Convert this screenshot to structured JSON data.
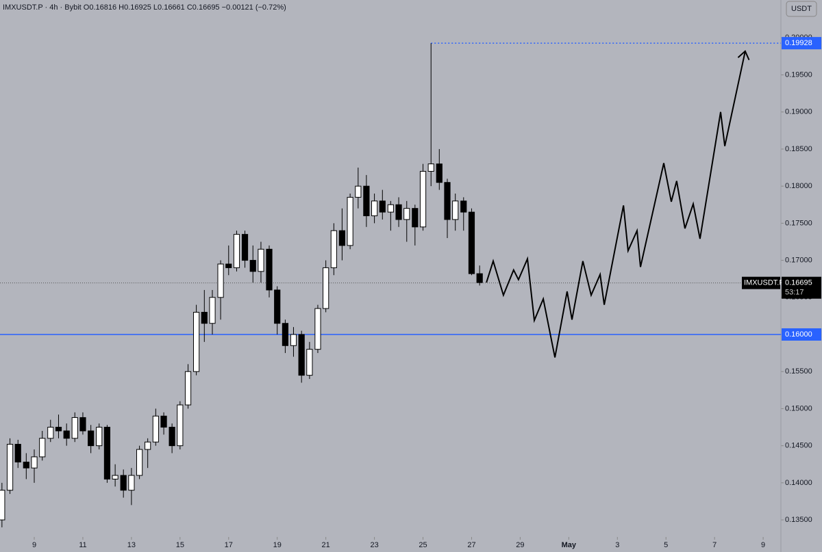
{
  "chart_data": {
    "type": "candlestick",
    "title": "IMXUSDT.P · 4h · Bybit  O0.16816 H0.16925 L0.16661 C0.16695 −0.00121 (−0.72%)",
    "currency": "USDT",
    "up_color": "#ffffff",
    "down_color": "#000000",
    "x": [
      7.67,
      8,
      8.33,
      8.67,
      9,
      9.33,
      9.67,
      10,
      10.33,
      10.67,
      11,
      11.33,
      11.67,
      12,
      12.33,
      12.67,
      13,
      13.33,
      13.67,
      14,
      14.33,
      14.67,
      15,
      15.33,
      15.67,
      16,
      16.33,
      16.67,
      17,
      17.33,
      17.67,
      18,
      18.33,
      18.67,
      19,
      19.33,
      19.67,
      20,
      20.33,
      20.67,
      21,
      21.33,
      21.67,
      22,
      22.33,
      22.67,
      23,
      23.33,
      23.67,
      24,
      24.33,
      24.67,
      25,
      25.33,
      25.67,
      26,
      26.33,
      26.67,
      27,
      27.33
    ],
    "ohlc": [
      [
        0.135,
        0.14,
        0.134,
        0.139
      ],
      [
        0.139,
        0.146,
        0.1385,
        0.1452
      ],
      [
        0.1452,
        0.1458,
        0.142,
        0.1428
      ],
      [
        0.1428,
        0.144,
        0.1405,
        0.142
      ],
      [
        0.142,
        0.1445,
        0.14,
        0.1435
      ],
      [
        0.1435,
        0.147,
        0.143,
        0.146
      ],
      [
        0.146,
        0.1485,
        0.1455,
        0.1475
      ],
      [
        0.1475,
        0.1492,
        0.146,
        0.147
      ],
      [
        0.147,
        0.148,
        0.145,
        0.146
      ],
      [
        0.146,
        0.1495,
        0.1455,
        0.1488
      ],
      [
        0.1488,
        0.1495,
        0.1465,
        0.147
      ],
      [
        0.147,
        0.1478,
        0.144,
        0.145
      ],
      [
        0.145,
        0.148,
        0.1445,
        0.1475
      ],
      [
        0.1475,
        0.1478,
        0.14,
        0.1405
      ],
      [
        0.1405,
        0.1425,
        0.1395,
        0.141
      ],
      [
        0.141,
        0.1418,
        0.138,
        0.139
      ],
      [
        0.139,
        0.142,
        0.137,
        0.141
      ],
      [
        0.141,
        0.145,
        0.1405,
        0.1445
      ],
      [
        0.1445,
        0.146,
        0.142,
        0.1455
      ],
      [
        0.1455,
        0.15,
        0.145,
        0.149
      ],
      [
        0.149,
        0.1495,
        0.1465,
        0.1475
      ],
      [
        0.1475,
        0.148,
        0.144,
        0.145
      ],
      [
        0.145,
        0.151,
        0.1445,
        0.1505
      ],
      [
        0.1505,
        0.156,
        0.15,
        0.155
      ],
      [
        0.155,
        0.164,
        0.1545,
        0.163
      ],
      [
        0.163,
        0.166,
        0.159,
        0.1615
      ],
      [
        0.1615,
        0.166,
        0.16,
        0.165
      ],
      [
        0.165,
        0.17,
        0.162,
        0.1695
      ],
      [
        0.1695,
        0.172,
        0.168,
        0.169
      ],
      [
        0.169,
        0.174,
        0.1685,
        0.1735
      ],
      [
        0.1735,
        0.174,
        0.169,
        0.17
      ],
      [
        0.17,
        0.172,
        0.167,
        0.1685
      ],
      [
        0.1685,
        0.1725,
        0.167,
        0.1715
      ],
      [
        0.1715,
        0.172,
        0.165,
        0.166
      ],
      [
        0.166,
        0.1665,
        0.16,
        0.1615
      ],
      [
        0.1615,
        0.162,
        0.1575,
        0.1585
      ],
      [
        0.1585,
        0.161,
        0.157,
        0.16
      ],
      [
        0.16,
        0.1605,
        0.1535,
        0.1545
      ],
      [
        0.1545,
        0.159,
        0.154,
        0.158
      ],
      [
        0.158,
        0.164,
        0.1575,
        0.1635
      ],
      [
        0.1635,
        0.17,
        0.163,
        0.169
      ],
      [
        0.169,
        0.175,
        0.168,
        0.174
      ],
      [
        0.174,
        0.177,
        0.17,
        0.172
      ],
      [
        0.172,
        0.179,
        0.1715,
        0.1785
      ],
      [
        0.1785,
        0.1825,
        0.177,
        0.18
      ],
      [
        0.18,
        0.1815,
        0.1745,
        0.176
      ],
      [
        0.176,
        0.179,
        0.175,
        0.178
      ],
      [
        0.178,
        0.1795,
        0.1755,
        0.1765
      ],
      [
        0.1765,
        0.178,
        0.174,
        0.1775
      ],
      [
        0.1775,
        0.1785,
        0.1745,
        0.1755
      ],
      [
        0.1755,
        0.178,
        0.1725,
        0.177
      ],
      [
        0.177,
        0.1775,
        0.172,
        0.1745
      ],
      [
        0.1745,
        0.183,
        0.174,
        0.182
      ],
      [
        0.182,
        0.19928,
        0.18,
        0.183
      ],
      [
        0.183,
        0.185,
        0.1795,
        0.1805
      ],
      [
        0.1805,
        0.181,
        0.173,
        0.1755
      ],
      [
        0.1755,
        0.179,
        0.174,
        0.178
      ],
      [
        0.178,
        0.1785,
        0.174,
        0.1765
      ],
      [
        0.1765,
        0.177,
        0.168,
        0.1682
      ],
      [
        0.1682,
        0.1693,
        0.1666,
        0.167
      ]
    ],
    "projection": {
      "x": [
        27.61,
        27.89,
        28.31,
        28.73,
        28.93,
        29.3,
        29.58,
        29.95,
        30.43,
        30.93,
        31.13,
        31.58,
        31.92,
        32.29,
        32.46,
        33.25,
        33.44,
        33.81,
        33.95,
        34.91,
        35.22,
        35.44,
        35.78,
        36.12,
        36.4,
        37.25,
        37.42,
        38.26
      ],
      "values": [
        0.167,
        0.1699,
        0.1653,
        0.1687,
        0.1674,
        0.1702,
        0.1619,
        0.1648,
        0.1569,
        0.1658,
        0.162,
        0.1699,
        0.1653,
        0.1681,
        0.164,
        0.1774,
        0.1713,
        0.174,
        0.1691,
        0.1831,
        0.1779,
        0.1807,
        0.1743,
        0.1776,
        0.1729,
        0.19,
        0.1854,
        0.1982
      ],
      "color": "#000000"
    },
    "levels": [
      {
        "value": 0.16,
        "label": "0.16000",
        "color": "#2962ff",
        "style": "solid"
      },
      {
        "value": 0.19928,
        "label": "0.19928",
        "color": "#2962ff",
        "style": "dotted"
      }
    ],
    "last_price": {
      "value": 0.16695,
      "symbol": "IMXUSDT.P",
      "countdown": "53:17"
    },
    "xlim": [
      7.59,
      39.73
    ],
    "ylim": [
      0.1327,
      0.2051
    ],
    "xticks": [
      9,
      11,
      13,
      15,
      17,
      19,
      21,
      23,
      25,
      27,
      29,
      {
        "value": 31,
        "label": "May"
      },
      {
        "value": 33,
        "label": "3"
      },
      {
        "value": 35,
        "label": "5"
      },
      {
        "value": 37,
        "label": "7"
      },
      {
        "value": 39,
        "label": "9"
      }
    ],
    "yticks": [
      {
        "value": 0.135,
        "label": "0.13500"
      },
      {
        "value": 0.14,
        "label": "0.14000"
      },
      {
        "value": 0.145,
        "label": "0.14500"
      },
      {
        "value": 0.15,
        "label": "0.15000"
      },
      {
        "value": 0.155,
        "label": "0.15500"
      },
      {
        "value": 0.16,
        "label": "0.16000"
      },
      {
        "value": 0.165,
        "label": "0.16500"
      },
      {
        "value": 0.17,
        "label": "0.17000"
      },
      {
        "value": 0.175,
        "label": "0.17500"
      },
      {
        "value": 0.18,
        "label": "0.18000"
      },
      {
        "value": 0.185,
        "label": "0.18500"
      },
      {
        "value": 0.19,
        "label": "0.19000"
      },
      {
        "value": 0.195,
        "label": "0.19500"
      },
      {
        "value": 0.2,
        "label": "0.20000"
      }
    ]
  }
}
